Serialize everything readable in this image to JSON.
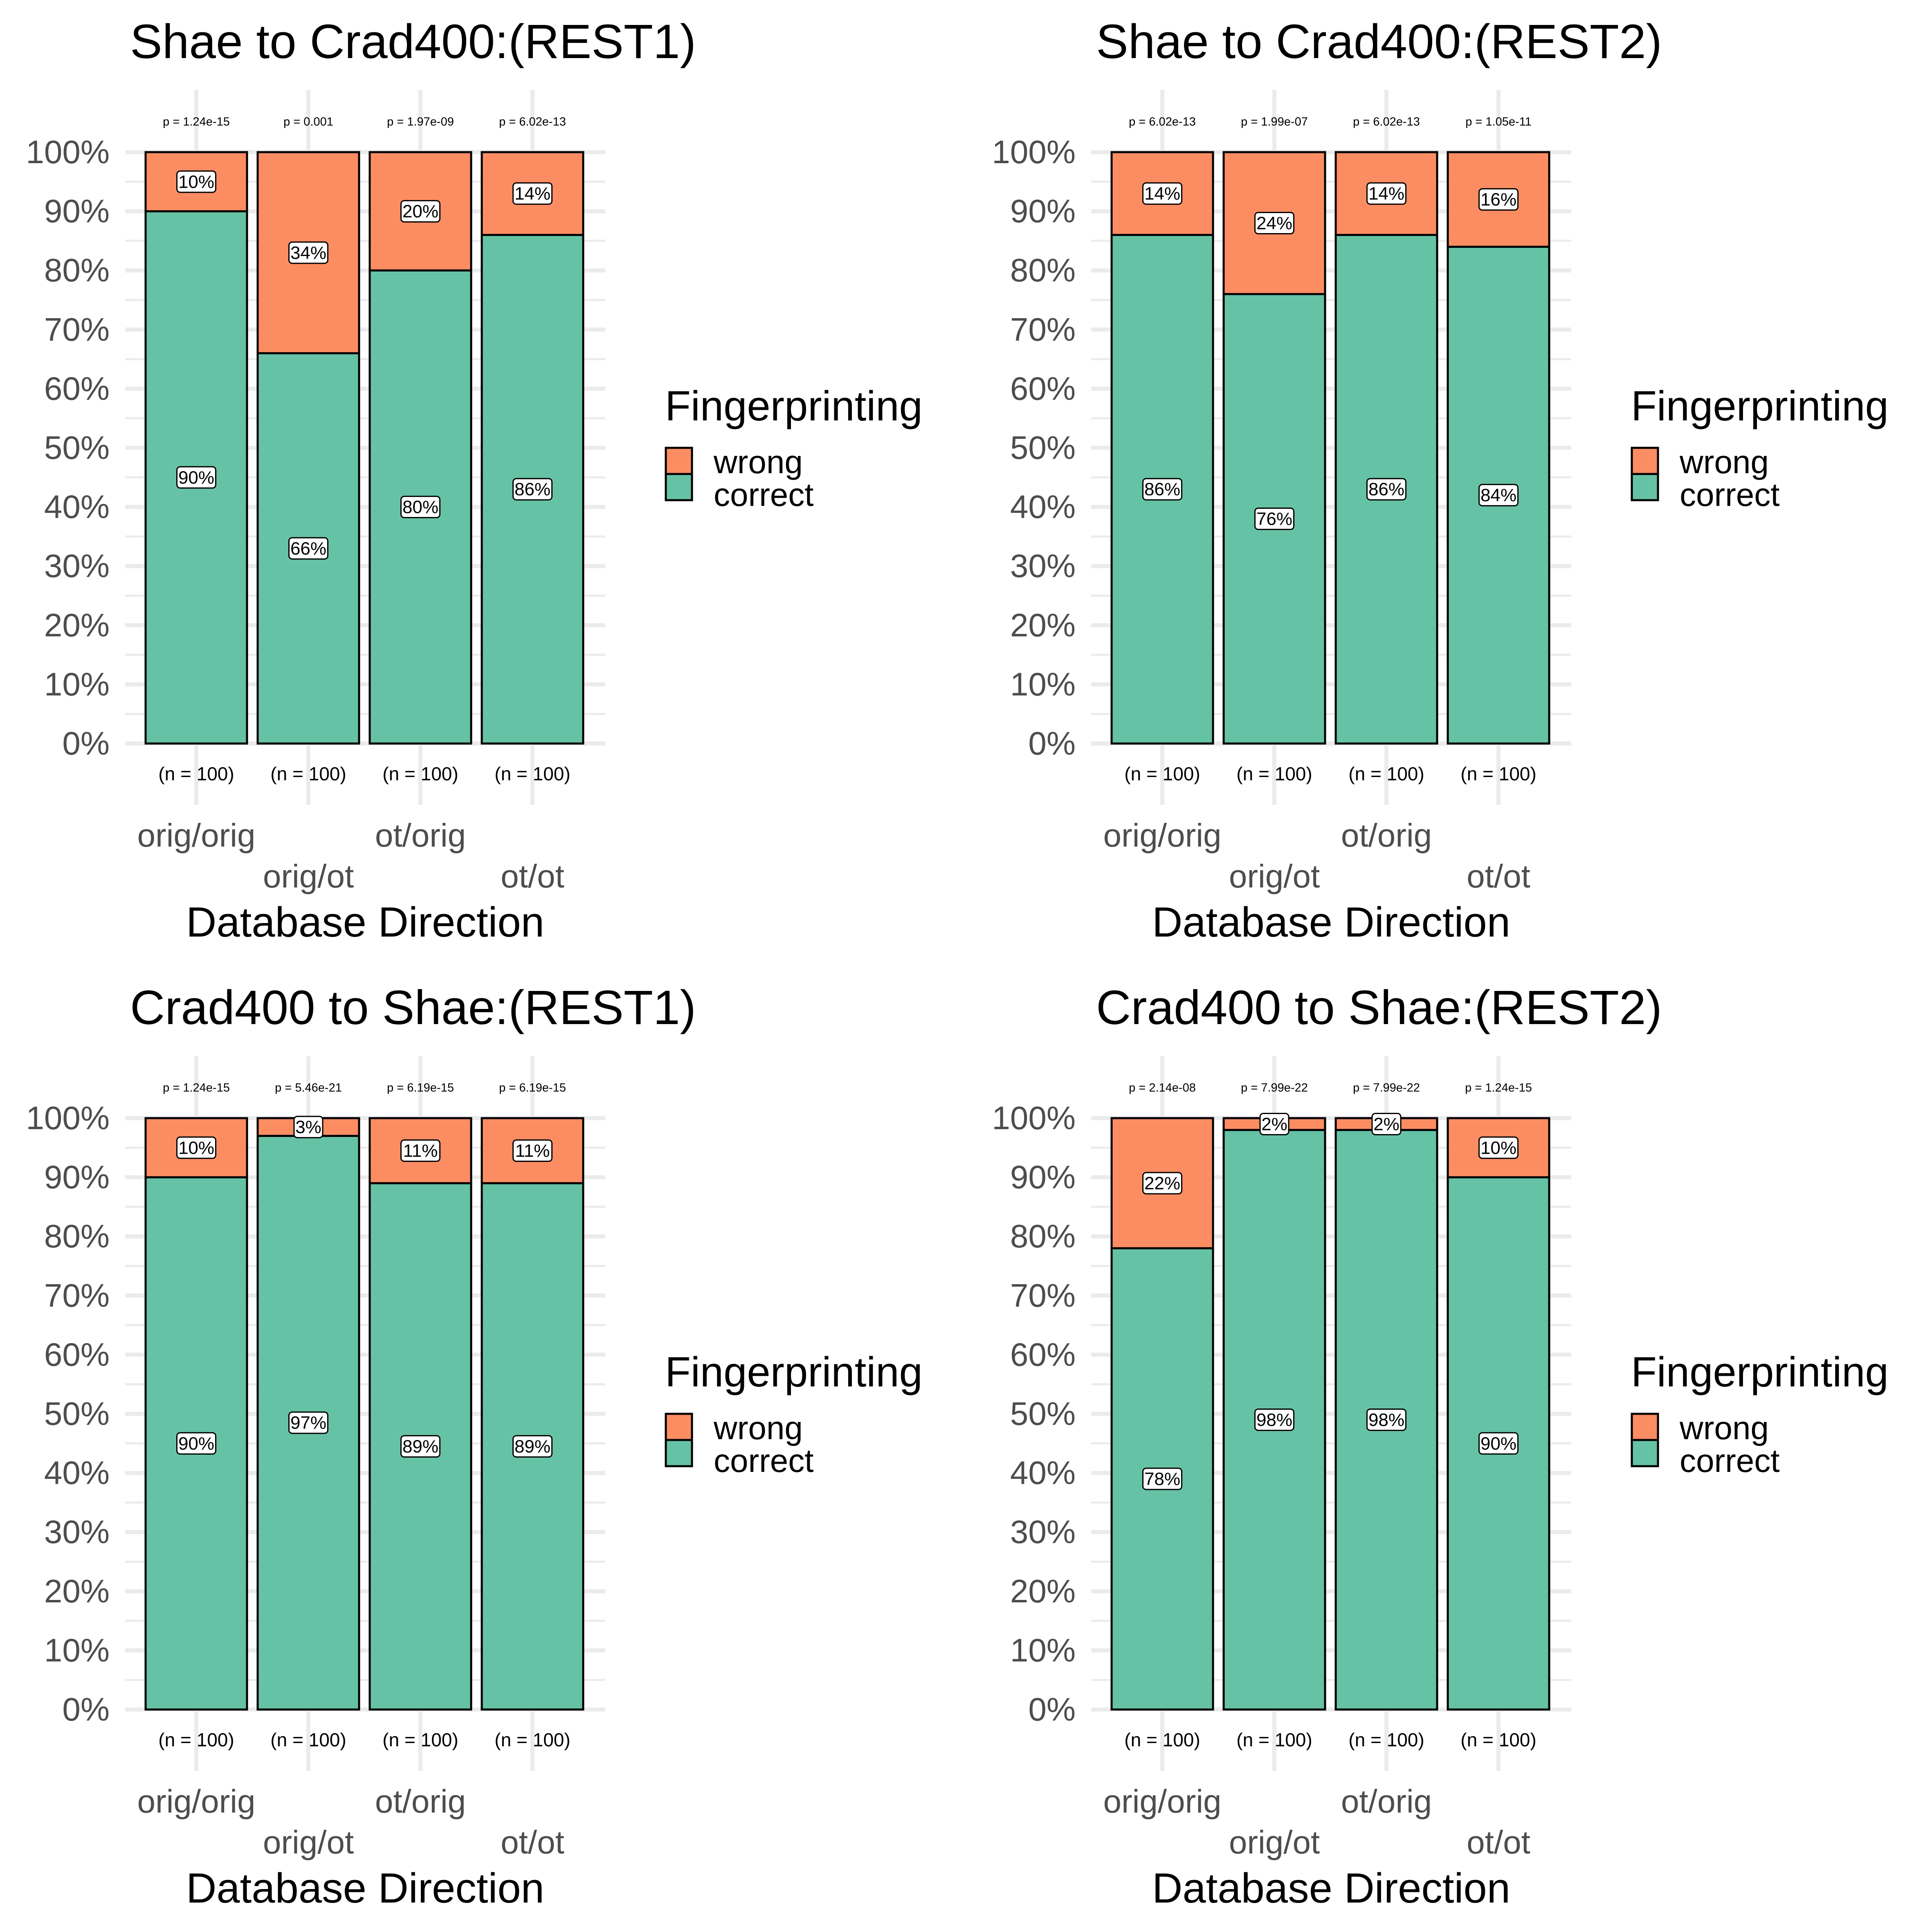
{
  "colors": {
    "correct": "#66C2A5",
    "wrong": "#FC8D62",
    "grid": "#EBEBEB",
    "bar_border": "#000000"
  },
  "chart_data": [
    {
      "type": "bar",
      "stacked": true,
      "title": "Shae to Crad400:(REST1)",
      "xlabel": "Database Direction",
      "ylabel": "",
      "ylim": [
        0,
        100
      ],
      "yticks": [
        "0%",
        "10%",
        "20%",
        "30%",
        "40%",
        "50%",
        "60%",
        "70%",
        "80%",
        "90%",
        "100%"
      ],
      "categories": [
        "orig/orig",
        "orig/ot",
        "ot/orig",
        "ot/ot"
      ],
      "series": [
        {
          "name": "correct",
          "values": [
            90,
            66,
            80,
            86
          ],
          "labels": [
            "90%",
            "66%",
            "80%",
            "86%"
          ]
        },
        {
          "name": "wrong",
          "values": [
            10,
            34,
            20,
            14
          ],
          "labels": [
            "10%",
            "34%",
            "20%",
            "14%"
          ]
        }
      ],
      "pvalues": [
        "p = 1.24e-15",
        "p = 0.001",
        "p = 1.97e-09",
        "p = 6.02e-13"
      ],
      "n_labels": [
        "(n = 100)",
        "(n = 100)",
        "(n = 100)",
        "(n = 100)"
      ],
      "legend": {
        "title": "Fingerprinting",
        "items": [
          "wrong",
          "correct"
        ],
        "position": "right"
      }
    },
    {
      "type": "bar",
      "stacked": true,
      "title": "Shae to Crad400:(REST2)",
      "xlabel": "Database Direction",
      "ylabel": "",
      "ylim": [
        0,
        100
      ],
      "yticks": [
        "0%",
        "10%",
        "20%",
        "30%",
        "40%",
        "50%",
        "60%",
        "70%",
        "80%",
        "90%",
        "100%"
      ],
      "categories": [
        "orig/orig",
        "orig/ot",
        "ot/orig",
        "ot/ot"
      ],
      "series": [
        {
          "name": "correct",
          "values": [
            86,
            76,
            86,
            84
          ],
          "labels": [
            "86%",
            "76%",
            "86%",
            "84%"
          ]
        },
        {
          "name": "wrong",
          "values": [
            14,
            24,
            14,
            16
          ],
          "labels": [
            "14%",
            "24%",
            "14%",
            "16%"
          ]
        }
      ],
      "pvalues": [
        "p = 6.02e-13",
        "p = 1.99e-07",
        "p = 6.02e-13",
        "p = 1.05e-11"
      ],
      "n_labels": [
        "(n = 100)",
        "(n = 100)",
        "(n = 100)",
        "(n = 100)"
      ],
      "legend": {
        "title": "Fingerprinting",
        "items": [
          "wrong",
          "correct"
        ],
        "position": "right"
      }
    },
    {
      "type": "bar",
      "stacked": true,
      "title": "Crad400 to Shae:(REST1)",
      "xlabel": "Database Direction",
      "ylabel": "",
      "ylim": [
        0,
        100
      ],
      "yticks": [
        "0%",
        "10%",
        "20%",
        "30%",
        "40%",
        "50%",
        "60%",
        "70%",
        "80%",
        "90%",
        "100%"
      ],
      "categories": [
        "orig/orig",
        "orig/ot",
        "ot/orig",
        "ot/ot"
      ],
      "series": [
        {
          "name": "correct",
          "values": [
            90,
            97,
            89,
            89
          ],
          "labels": [
            "90%",
            "97%",
            "89%",
            "89%"
          ]
        },
        {
          "name": "wrong",
          "values": [
            10,
            3,
            11,
            11
          ],
          "labels": [
            "10%",
            "3%",
            "11%",
            "11%"
          ]
        }
      ],
      "pvalues": [
        "p = 1.24e-15",
        "p = 5.46e-21",
        "p = 6.19e-15",
        "p = 6.19e-15"
      ],
      "n_labels": [
        "(n = 100)",
        "(n = 100)",
        "(n = 100)",
        "(n = 100)"
      ],
      "legend": {
        "title": "Fingerprinting",
        "items": [
          "wrong",
          "correct"
        ],
        "position": "right"
      }
    },
    {
      "type": "bar",
      "stacked": true,
      "title": "Crad400 to Shae:(REST2)",
      "xlabel": "Database Direction",
      "ylabel": "",
      "ylim": [
        0,
        100
      ],
      "yticks": [
        "0%",
        "10%",
        "20%",
        "30%",
        "40%",
        "50%",
        "60%",
        "70%",
        "80%",
        "90%",
        "100%"
      ],
      "categories": [
        "orig/orig",
        "orig/ot",
        "ot/orig",
        "ot/ot"
      ],
      "series": [
        {
          "name": "correct",
          "values": [
            78,
            98,
            98,
            90
          ],
          "labels": [
            "78%",
            "98%",
            "98%",
            "90%"
          ]
        },
        {
          "name": "wrong",
          "values": [
            22,
            2,
            2,
            10
          ],
          "labels": [
            "22%",
            "2%",
            "2%",
            "10%"
          ]
        }
      ],
      "pvalues": [
        "p = 2.14e-08",
        "p = 7.99e-22",
        "p = 7.99e-22",
        "p = 1.24e-15"
      ],
      "n_labels": [
        "(n = 100)",
        "(n = 100)",
        "(n = 100)",
        "(n = 100)"
      ],
      "legend": {
        "title": "Fingerprinting",
        "items": [
          "wrong",
          "correct"
        ],
        "position": "right"
      }
    }
  ]
}
